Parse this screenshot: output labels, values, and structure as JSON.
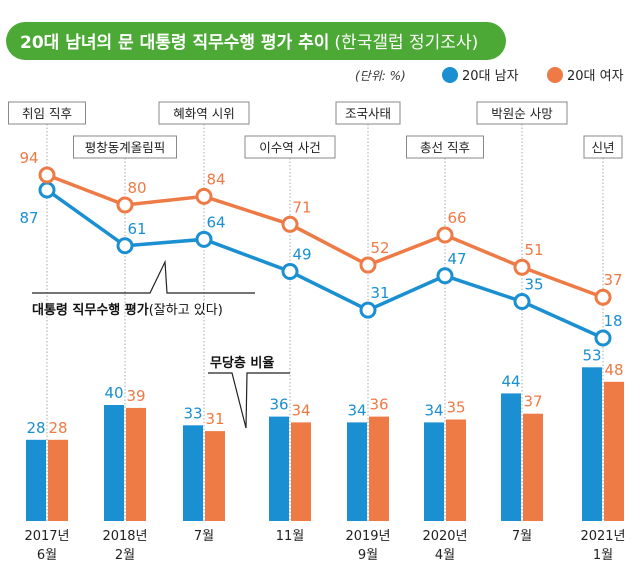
{
  "chart_data": {
    "type": "line+bar",
    "title": "20대 남녀의 문 대통령 직무수행 평가 추이",
    "title_suffix": "(한국갤럽 정기조사)",
    "unit": "(단위: %)",
    "categories": [
      "2017년\n6월",
      "2018년\n2월",
      "7월",
      "11월",
      "2019년\n9월",
      "2020년\n4월",
      "7월",
      "2021년\n1월"
    ],
    "events": [
      "취임 직후",
      "평창동계올림픽",
      "혜화역 시위",
      "이수역 사건",
      "조국사태",
      "총선 직후",
      "박원순 사망",
      "신년"
    ],
    "line_label_bold": "대통령 직무수행 평가",
    "line_label_rest": "(잘하고 있다)",
    "bar_label": "무당층 비율",
    "line_series": [
      {
        "name": "20대 남자",
        "color": "#1a8fd1",
        "values": [
          87,
          61,
          64,
          49,
          31,
          47,
          35,
          18
        ]
      },
      {
        "name": "20대 여자",
        "color": "#ee7a45",
        "values": [
          94,
          80,
          84,
          71,
          52,
          66,
          51,
          37
        ]
      }
    ],
    "bar_series": [
      {
        "name": "20대 남자",
        "color": "#1a8fd1",
        "values": [
          28,
          40,
          33,
          36,
          34,
          34,
          44,
          53
        ]
      },
      {
        "name": "20대 여자",
        "color": "#ee7a45",
        "values": [
          28,
          39,
          31,
          34,
          36,
          35,
          37,
          48
        ]
      }
    ],
    "title_color": "#4ca935"
  }
}
